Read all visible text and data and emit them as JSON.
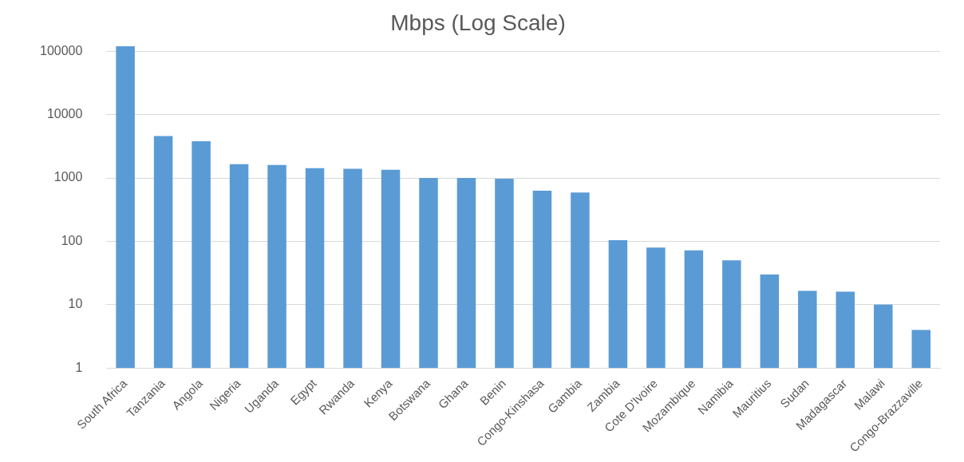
{
  "chart_data": {
    "type": "bar",
    "title": "Mbps (Log Scale)",
    "categories": [
      "South Africa",
      "Tanzania",
      "Angola",
      "Nigeria",
      "Uganda",
      "Egypt",
      "Rwanda",
      "Kenya",
      "Botswana",
      "Ghana",
      "Benin",
      "Congo-Kinshasa",
      "Gambia",
      "Zambia",
      "Cote D'Ivoire",
      "Mozambique",
      "Namibia",
      "Mauritius",
      "Sudan",
      "Madagascar",
      "Malawi",
      "Congo-Brazzaville"
    ],
    "values": [
      120000,
      4600,
      3800,
      1650,
      1600,
      1430,
      1400,
      1350,
      1000,
      1000,
      970,
      630,
      590,
      104,
      80,
      72,
      50,
      30,
      16.5,
      16,
      10,
      4
    ],
    "color": "#5b9bd5",
    "log": "y",
    "ylim": [
      1,
      125000
    ],
    "yticks": [
      1,
      10,
      100,
      1000,
      10000,
      100000
    ],
    "grid": "y",
    "legend": false
  }
}
